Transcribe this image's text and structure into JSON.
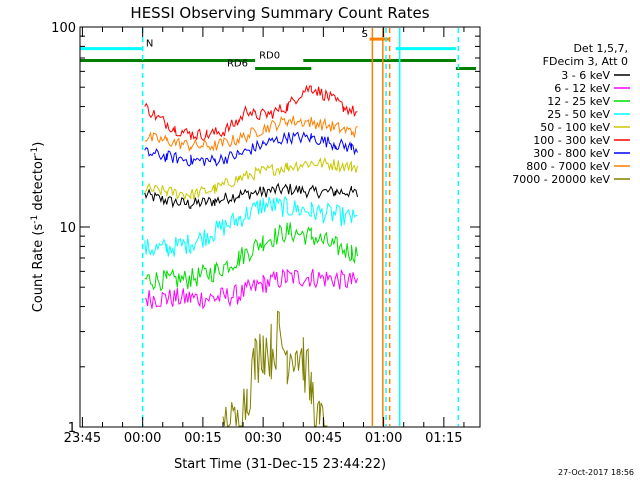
{
  "chart_data": {
    "type": "line",
    "title": "HESSI Observing Summary Count Rates",
    "xlabel": "Start Time (31-Dec-15 23:44:22)",
    "ylabel_main": "Count Rate (s",
    "ylabel_sup": "-1",
    "ylabel_mid": " detector",
    "ylabel_end": ")",
    "ylog": true,
    "ylim": [
      1,
      100
    ],
    "y_ticks": [
      {
        "value": 1,
        "label": "1"
      },
      {
        "value": 10,
        "label": "10"
      },
      {
        "value": 100,
        "label": "100"
      }
    ],
    "x_ticks": [
      {
        "value": -15,
        "label": "23:45"
      },
      {
        "value": 0,
        "label": "00:00"
      },
      {
        "value": 15,
        "label": "00:15"
      },
      {
        "value": 30,
        "label": "00:30"
      },
      {
        "value": 45,
        "label": "00:45"
      },
      {
        "value": 60,
        "label": "01:00"
      },
      {
        "value": 75,
        "label": "01:15"
      }
    ],
    "x_unit": "minutes after 00:00 UT, 01-Jan-2016",
    "xlim": [
      -15.6,
      84
    ],
    "legend": {
      "placement": "right",
      "header": [
        "Det 1,5,7,",
        "FDecim 3, Att 0"
      ]
    },
    "series": [
      {
        "name": "3 - 6 keV",
        "color": "#000000",
        "points": [
          [
            0.5,
            14.5
          ],
          [
            6,
            13.5
          ],
          [
            12,
            13
          ],
          [
            18,
            13.5
          ],
          [
            24,
            14.5
          ],
          [
            30,
            15
          ],
          [
            36,
            15.5
          ],
          [
            42,
            15
          ],
          [
            48,
            15
          ],
          [
            52,
            15
          ],
          [
            53.5,
            14.5
          ],
          [
            60.5,
            14.5
          ],
          [
            62,
            14.5
          ]
        ]
      },
      {
        "name": "6 - 12 keV",
        "color": "#ff00ff",
        "points": [
          [
            0.5,
            4.4
          ],
          [
            6,
            4.4
          ],
          [
            12,
            4.4
          ],
          [
            18,
            4.4
          ],
          [
            24,
            4.6
          ],
          [
            30,
            5.2
          ],
          [
            36,
            5.6
          ],
          [
            42,
            5.6
          ],
          [
            48,
            5.5
          ],
          [
            52,
            5.3
          ],
          [
            53.5,
            5.3
          ],
          [
            60.5,
            4.3
          ],
          [
            62,
            4.5
          ]
        ]
      },
      {
        "name": "12 - 25 keV",
        "color": "#00dd00",
        "points": [
          [
            0.5,
            5.5
          ],
          [
            6,
            5.4
          ],
          [
            12,
            5.5
          ],
          [
            18,
            6
          ],
          [
            24,
            7
          ],
          [
            30,
            8.5
          ],
          [
            36,
            9.5
          ],
          [
            42,
            9
          ],
          [
            48,
            8
          ],
          [
            52,
            7.5
          ],
          [
            53.5,
            7.5
          ],
          [
            60.5,
            6.3
          ],
          [
            62,
            6.3
          ]
        ]
      },
      {
        "name": "25 - 50 keV",
        "color": "#00ffff",
        "points": [
          [
            0.5,
            7.8
          ],
          [
            6,
            7.8
          ],
          [
            12,
            8.3
          ],
          [
            18,
            9.5
          ],
          [
            24,
            11
          ],
          [
            30,
            13
          ],
          [
            36,
            12.5
          ],
          [
            42,
            12
          ],
          [
            48,
            11.5
          ],
          [
            52,
            11
          ],
          [
            53.5,
            10.8
          ],
          [
            60.5,
            9.2
          ],
          [
            62,
            9.2
          ]
        ]
      },
      {
        "name": "50 - 100 keV",
        "color": "#c8c800",
        "points": [
          [
            0.5,
            15.5
          ],
          [
            6,
            15
          ],
          [
            12,
            14.5
          ],
          [
            18,
            15.5
          ],
          [
            24,
            17.5
          ],
          [
            30,
            19
          ],
          [
            36,
            20
          ],
          [
            42,
            21
          ],
          [
            48,
            20.5
          ],
          [
            52,
            20
          ],
          [
            53.5,
            20
          ],
          [
            60.5,
            17
          ],
          [
            62,
            17
          ]
        ]
      },
      {
        "name": "100 - 300 keV",
        "color": "#ff0000",
        "points": [
          [
            0.5,
            40
          ],
          [
            4,
            35
          ],
          [
            8,
            31
          ],
          [
            12,
            29
          ],
          [
            16,
            29
          ],
          [
            20,
            30
          ],
          [
            24,
            34
          ],
          [
            26,
            39
          ],
          [
            28,
            36
          ],
          [
            32,
            37
          ],
          [
            36,
            40
          ],
          [
            40,
            48
          ],
          [
            42,
            50
          ],
          [
            46,
            45
          ],
          [
            50,
            40
          ],
          [
            53.5,
            37
          ],
          [
            60.5,
            28
          ],
          [
            62,
            32
          ]
        ]
      },
      {
        "name": "300 - 800 keV",
        "color": "#0000ff",
        "points": [
          [
            0.5,
            23.5
          ],
          [
            6,
            22.5
          ],
          [
            12,
            21.5
          ],
          [
            18,
            21.5
          ],
          [
            24,
            23
          ],
          [
            30,
            26
          ],
          [
            36,
            28
          ],
          [
            42,
            28
          ],
          [
            48,
            26
          ],
          [
            52,
            25
          ],
          [
            53.5,
            24.5
          ],
          [
            60.5,
            20
          ],
          [
            62,
            20
          ]
        ]
      },
      {
        "name": "800 - 7000 keV",
        "color": "#ff8000",
        "points": [
          [
            0.5,
            28
          ],
          [
            6,
            27
          ],
          [
            12,
            25.5
          ],
          [
            18,
            25.5
          ],
          [
            24,
            27.5
          ],
          [
            30,
            31
          ],
          [
            36,
            34
          ],
          [
            42,
            33.5
          ],
          [
            48,
            31.5
          ],
          [
            52,
            30
          ],
          [
            53.5,
            30
          ],
          [
            60.5,
            23
          ],
          [
            62,
            23
          ]
        ]
      },
      {
        "name": "7000 - 20000 keV",
        "color": "#808000",
        "points": [
          [
            20,
            1
          ],
          [
            24,
            1
          ],
          [
            26,
            1.5
          ],
          [
            28,
            2.1
          ],
          [
            30,
            2.6
          ],
          [
            32,
            2.4
          ],
          [
            34,
            2.9
          ],
          [
            36,
            2.3
          ],
          [
            38,
            2.5
          ],
          [
            40,
            2.2
          ],
          [
            42,
            1.5
          ],
          [
            44,
            1
          ],
          [
            46,
            1
          ]
        ]
      }
    ],
    "bars": [
      {
        "label": "N",
        "color": "#00ffff",
        "y": 78,
        "start": -15.6,
        "end": 0,
        "label_at": 0.8
      },
      {
        "label": "",
        "color": "#00ffff",
        "y": 78,
        "start": 63,
        "end": 78,
        "label_at": null
      },
      {
        "label": "S",
        "color": "#ff8000",
        "y": 87,
        "start": 56.5,
        "end": 61.5,
        "label_at": 54.5
      },
      {
        "label": "RD0",
        "color": "#007f00",
        "y": 68,
        "start": -15.6,
        "end": 28,
        "label_at": 29
      },
      {
        "label": "",
        "color": "#007f00",
        "y": 68,
        "start": 40,
        "end": 78,
        "label_at": null
      },
      {
        "label": "RD6",
        "color": "#007f00",
        "y": 62,
        "start": 28,
        "end": 42,
        "label_at": 21
      },
      {
        "label": "",
        "color": "#007f00",
        "y": 62,
        "start": 78,
        "end": 83,
        "label_at": null
      }
    ],
    "vlines": [
      {
        "x": 0,
        "color": "#00ffff",
        "dashed": true
      },
      {
        "x": 57.2,
        "color": "#ff8000",
        "dashed": false
      },
      {
        "x": 59.8,
        "color": "#ff8000",
        "dashed": false
      },
      {
        "x": 61.5,
        "color": "#ff8000",
        "dashed": true
      },
      {
        "x": 60.6,
        "color": "#00ffff",
        "dashed": true
      },
      {
        "x": 64,
        "color": "#00ffff",
        "dashed": false
      },
      {
        "x": 78.6,
        "color": "#00ffff",
        "dashed": true
      }
    ],
    "timestamp": "27-Oct-2017 18:56"
  }
}
